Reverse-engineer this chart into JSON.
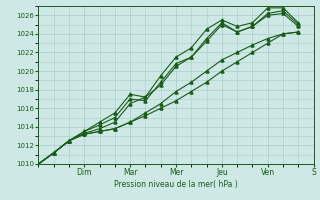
{
  "xlabel": "Pression niveau de la mer( hPa )",
  "ylim": [
    1010,
    1027
  ],
  "yticks": [
    1010,
    1012,
    1014,
    1016,
    1018,
    1020,
    1022,
    1024,
    1026
  ],
  "bg_color": "#cde8e5",
  "grid_color": "#a8ccca",
  "line_color": "#1a5c1a",
  "day_labels": [
    "Dim",
    "Mar",
    "Mer",
    "Jeu",
    "Ven",
    "S"
  ],
  "day_positions": [
    3.0,
    6.0,
    9.0,
    12.0,
    15.0,
    18.0
  ],
  "xlim": [
    0,
    18
  ],
  "series": [
    [
      1010.0,
      1011.2,
      1012.5,
      1013.2,
      1013.5,
      1013.8,
      1014.5,
      1015.5,
      1016.5,
      1017.8,
      1018.8,
      1020.0,
      1021.2,
      1022.0,
      1022.8,
      1023.5,
      1024.0,
      1024.2
    ],
    [
      1010.0,
      1011.2,
      1012.5,
      1013.3,
      1013.8,
      1014.5,
      1016.5,
      1017.2,
      1018.5,
      1020.5,
      1021.5,
      1023.2,
      1025.0,
      1024.2,
      1024.8,
      1026.0,
      1026.2,
      1024.8
    ],
    [
      1010.0,
      1011.2,
      1012.5,
      1013.5,
      1014.2,
      1015.0,
      1017.0,
      1016.8,
      1018.8,
      1020.8,
      1021.5,
      1023.5,
      1025.2,
      1024.2,
      1024.8,
      1026.2,
      1026.5,
      1025.0
    ],
    [
      1010.0,
      1011.2,
      1012.5,
      1013.5,
      1014.5,
      1015.5,
      1017.5,
      1017.2,
      1019.5,
      1021.5,
      1022.5,
      1024.5,
      1025.5,
      1024.8,
      1025.2,
      1026.8,
      1026.8,
      1025.2
    ],
    [
      1010.0,
      1011.2,
      1012.5,
      1013.2,
      1013.5,
      1013.8,
      1014.5,
      1015.2,
      1016.0,
      1016.8,
      1017.8,
      1018.8,
      1020.0,
      1021.0,
      1022.0,
      1023.0,
      1024.0,
      1024.2
    ]
  ]
}
